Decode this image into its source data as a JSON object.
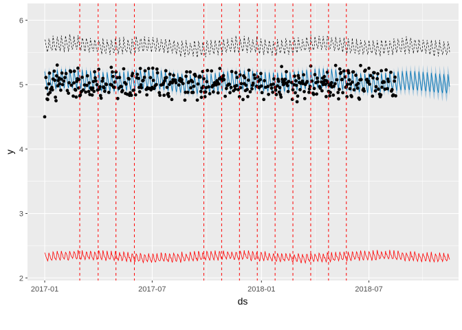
{
  "chart_data": {
    "type": "line",
    "title": "",
    "xlabel": "ds",
    "ylabel": "y",
    "x_range": [
      "2016-12-03",
      "2018-11-29"
    ],
    "y_range": [
      1.96,
      6.26
    ],
    "x_ticks": [
      {
        "date": "2017-01-01",
        "label": "2017-01"
      },
      {
        "date": "2017-07-01",
        "label": "2017-07"
      },
      {
        "date": "2018-01-01",
        "label": "2018-01"
      },
      {
        "date": "2018-07-01",
        "label": "2018-07"
      }
    ],
    "y_ticks": [
      {
        "value": 2,
        "label": "2"
      },
      {
        "value": 3,
        "label": "3"
      },
      {
        "value": 4,
        "label": "4"
      },
      {
        "value": 5,
        "label": "5"
      },
      {
        "value": 6,
        "label": "6"
      }
    ],
    "grid": true,
    "legend": "none",
    "colors": {
      "panel": "#ebebeb",
      "grid": "#ffffff",
      "observed_points": "#000000",
      "forecast_line": "#0072b2",
      "uncertainty_band": "#a8c8dd",
      "upper_bound": "#000000",
      "changepoints": "#ff0000",
      "lower_series": "#ff0000"
    },
    "series": [
      {
        "role": "observed_points",
        "style": "scatter",
        "x_start": "2017-01-01",
        "x_end": "2018-08-15",
        "mean": 5.02,
        "spread": 0.17,
        "min": 4.5,
        "max": 5.5
      },
      {
        "role": "forecast_yhat",
        "style": "line",
        "x_start": "2017-01-01",
        "x_end": "2018-11-14",
        "mean": 5.05,
        "weekly_amplitude": 0.16
      },
      {
        "role": "uncertainty_band",
        "style": "area",
        "x_start": "2017-01-01",
        "x_end": "2018-11-14",
        "half_width": 0.06
      },
      {
        "role": "upper_bound",
        "style": "dashed-line",
        "x_start": "2017-01-01",
        "x_end": "2018-11-14",
        "mean": 5.6,
        "weekly_amplitude": 0.12
      },
      {
        "role": "lower_series",
        "style": "line",
        "x_start": "2017-01-01",
        "x_end": "2018-11-14",
        "mean": 2.33,
        "weekly_amplitude": 0.07
      }
    ],
    "changepoints": [
      "2017-03-01",
      "2017-04-01",
      "2017-05-01",
      "2017-06-01",
      "2017-09-26",
      "2017-10-26",
      "2017-11-25",
      "2017-12-25",
      "2018-01-24",
      "2018-02-23",
      "2018-03-25",
      "2018-04-24",
      "2018-05-24"
    ]
  }
}
